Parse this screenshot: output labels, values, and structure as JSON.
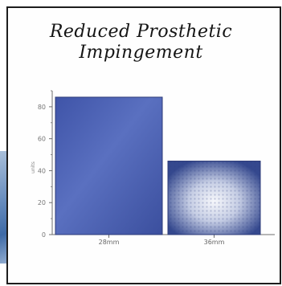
{
  "chart_data": {
    "type": "bar",
    "title": "Reduced Prosthetic Impingement",
    "title_lines": [
      "Reduced Prosthetic",
      "Impingement"
    ],
    "categories": [
      "28mm",
      "36mm"
    ],
    "values": [
      86,
      46
    ],
    "ylabel": "units",
    "xlabel": "",
    "ylim": [
      0,
      90
    ],
    "yticks": [
      0,
      20,
      40,
      60,
      80
    ],
    "grid": false,
    "legend": "none",
    "colors": {
      "bar_28mm": "#4a5fb3",
      "bar_36mm_center": "#f4f6fa",
      "bar_36mm_edge": "#3a4f93",
      "axis": "#6f6f6f",
      "frame": "#1d1d1d"
    }
  }
}
